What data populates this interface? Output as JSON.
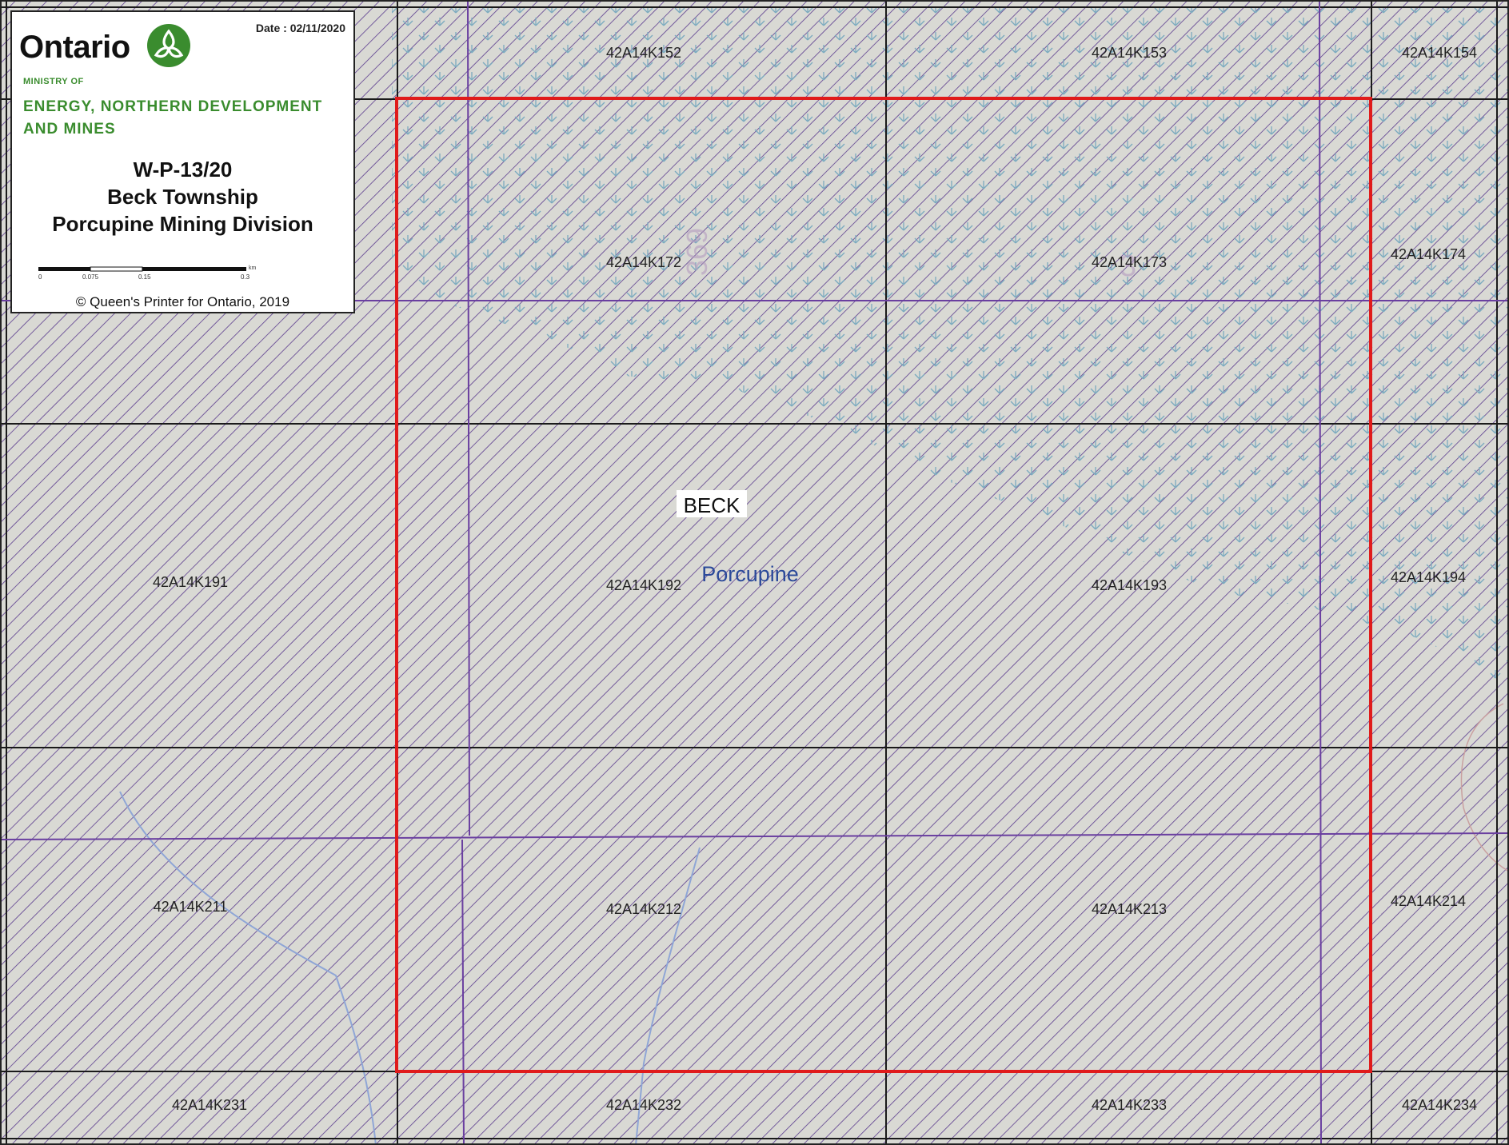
{
  "legend": {
    "logo_text": "Ontario",
    "date": "Date : 02/11/2020",
    "ministry_of": "MINISTRY OF",
    "ministry_line1": "ENERGY, NORTHERN DEVELOPMENT",
    "ministry_line2": "AND MINES",
    "title": "W-P-13/20",
    "township": "Beck Township",
    "division": "Porcupine Mining Division",
    "scale_ticks": [
      "0",
      "0.075",
      "0.15",
      "0.3"
    ],
    "scale_unit": "km",
    "copyright": "© Queen's Printer for Ontario, 2019"
  },
  "map": {
    "township_label": "BECK",
    "division_label": "Porcupine",
    "cells": [
      "42A14K152",
      "42A14K153",
      "42A14K154",
      "42A14K172",
      "42A14K173",
      "42A14K174",
      "42A14K191",
      "42A14K192",
      "42A14K193",
      "42A14K194",
      "42A14K211",
      "42A14K212",
      "42A14K213",
      "42A14K214",
      "42A14K231",
      "42A14K232",
      "42A14K233",
      "42A14K234"
    ],
    "colors": {
      "background": "#d9d9d4",
      "hatch": "#5b3c8e",
      "grid": "#1a1a1a",
      "claim_boundary": "#e01b1b",
      "wetland": "#7aaabf",
      "brand_green": "#3a8c2e"
    }
  }
}
